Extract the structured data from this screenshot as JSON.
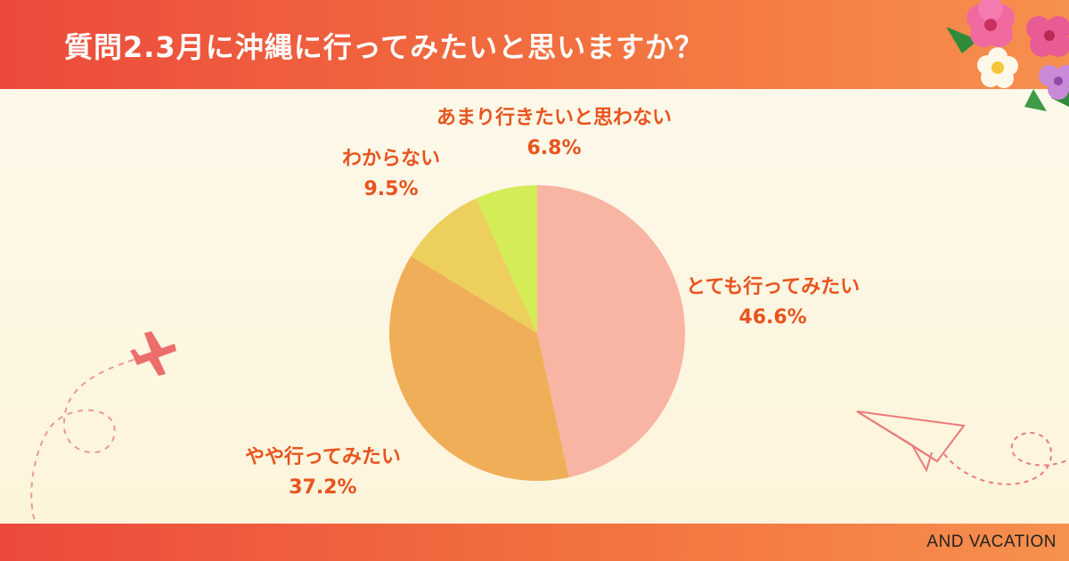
{
  "header": {
    "title": "質問2.3月に沖縄に行ってみたいと思いますか？"
  },
  "footer": {
    "brand": "AND VACATION"
  },
  "colors": {
    "header_gradient": [
      "#ec4a3c",
      "#f6904e"
    ],
    "label_text": "#e8541e"
  },
  "icons": [
    "hibiscus-flowers-icon",
    "airplane-icon",
    "paper-plane-icon"
  ],
  "chart_data": {
    "type": "pie",
    "start_angle_deg": 0,
    "direction": "clockwise",
    "slices": [
      {
        "name": "とても行ってみたい",
        "label": "46.6%",
        "value": 46.6,
        "color": "#f8b5a3"
      },
      {
        "name": "やや行ってみたい",
        "label": "37.2%",
        "value": 37.2,
        "color": "#f0ae58"
      },
      {
        "name": "わからない",
        "label": "9.5%",
        "value": 9.5,
        "color": "#eccf5c"
      },
      {
        "name": "あまり行きたいと思わない",
        "label": "6.8%",
        "value": 6.8,
        "color": "#d4ec55"
      }
    ]
  }
}
